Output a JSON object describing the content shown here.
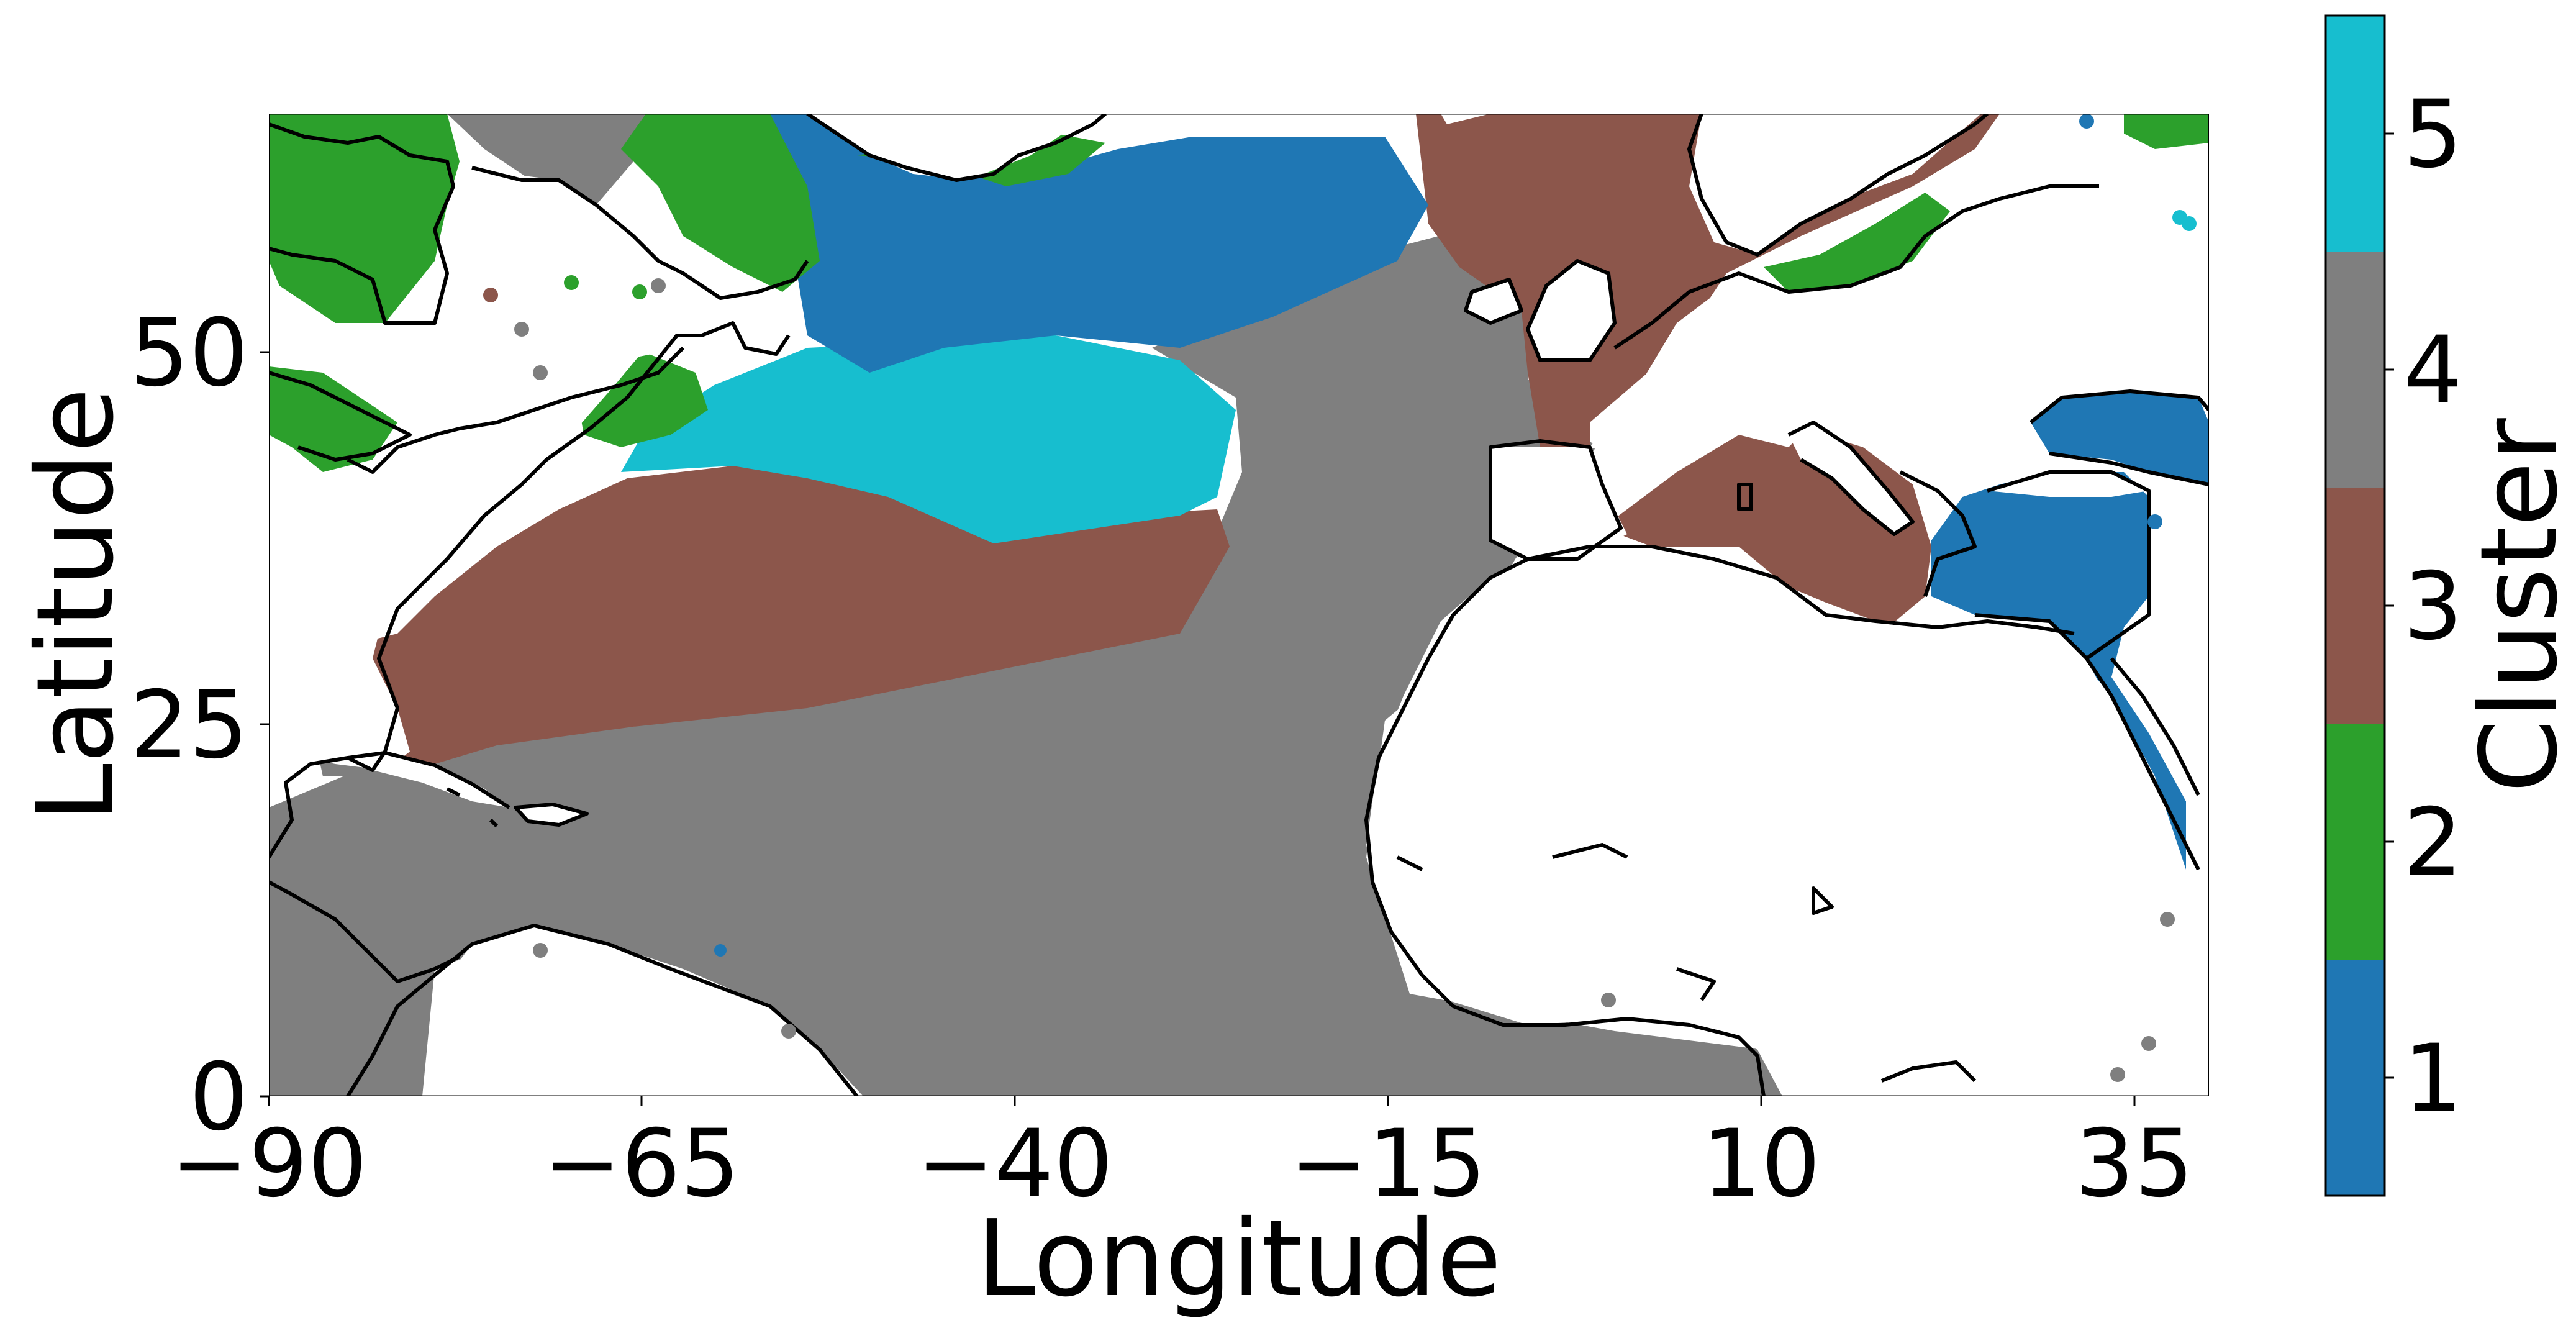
{
  "map": {
    "xlabel": "Longitude",
    "ylabel": "Latitude",
    "x_ticks": [
      "−90",
      "−65",
      "−40",
      "−15",
      "10",
      "35"
    ],
    "y_ticks": [
      "0",
      "25",
      "50"
    ],
    "x_range": [
      -90,
      40
    ],
    "y_range": [
      0,
      66
    ],
    "colors": {
      "cluster_1": "#1f77b4",
      "cluster_2": "#2ca02c",
      "cluster_3": "#8c564b",
      "cluster_4": "#7f7f7f",
      "cluster_5": "#17becf",
      "coastline": "#000000"
    }
  },
  "colorbar": {
    "label": "Cluster",
    "ticks": [
      "1",
      "2",
      "3",
      "4",
      "5"
    ],
    "colors": [
      "#1f77b4",
      "#2ca02c",
      "#8c564b",
      "#7f7f7f",
      "#17becf"
    ]
  }
}
